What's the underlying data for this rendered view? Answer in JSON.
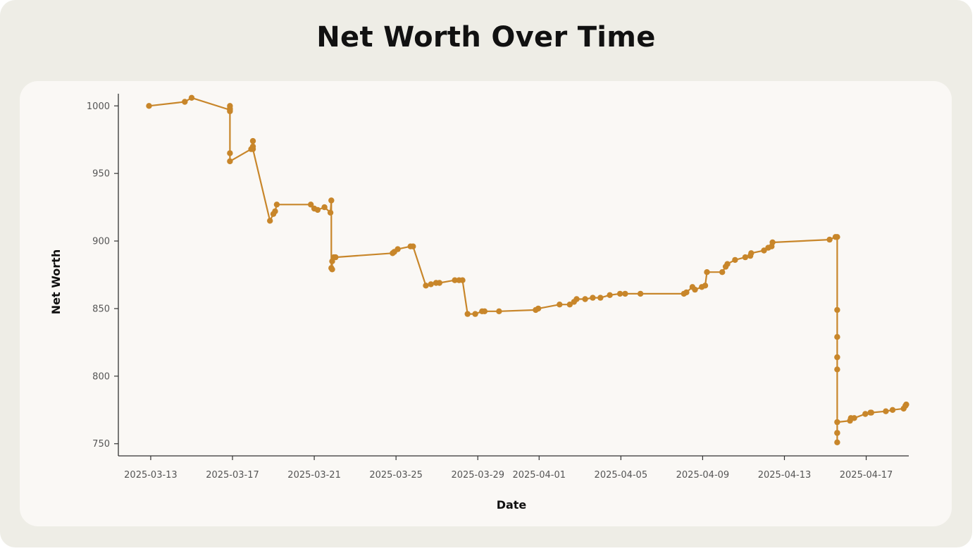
{
  "chart_data": {
    "type": "line",
    "title": "Net Worth Over Time",
    "xlabel": "Date",
    "ylabel": "Net Worth",
    "xlim": [
      "2025-03-11 10:00",
      "2025-04-19 02:00"
    ],
    "ylim": [
      741,
      1009
    ],
    "xticks": [
      "2025-03-13",
      "2025-03-17",
      "2025-03-21",
      "2025-03-25",
      "2025-03-29",
      "2025-04-01",
      "2025-04-05",
      "2025-04-09",
      "2025-04-13",
      "2025-04-17"
    ],
    "yticks": [
      750,
      800,
      850,
      900,
      950,
      1000
    ],
    "grid": false,
    "line_color": "#c8862a",
    "series": [
      {
        "x": [
          "2025-03-12 22:00",
          "2025-03-14 16:00",
          "2025-03-15 00:00",
          "2025-03-16 21:00",
          "2025-03-16 21:00",
          "2025-03-16 21:00",
          "2025-03-16 21:00",
          "2025-03-16 21:00",
          "2025-03-16 21:00",
          "2025-03-17 22:00",
          "2025-03-18 00:00",
          "2025-03-18 00:00",
          "2025-03-18 00:00",
          "2025-03-18 20:00",
          "2025-03-19 00:00",
          "2025-03-19 02:00",
          "2025-03-19 04:00",
          "2025-03-20 20:00",
          "2025-03-21 00:00",
          "2025-03-21 04:00",
          "2025-03-21 12:00",
          "2025-03-21 19:00",
          "2025-03-21 20:00",
          "2025-03-21 20:00",
          "2025-03-21 21:00",
          "2025-03-21 21:00",
          "2025-03-21 23:00",
          "2025-03-22 01:00",
          "2025-03-24 20:00",
          "2025-03-24 22:00",
          "2025-03-25 02:00",
          "2025-03-25 17:00",
          "2025-03-25 20:00",
          "2025-03-26 11:00",
          "2025-03-26 17:00",
          "2025-03-26 23:00",
          "2025-03-27 03:00",
          "2025-03-27 21:00",
          "2025-03-28 02:00",
          "2025-03-28 06:00",
          "2025-03-28 12:00",
          "2025-03-28 21:00",
          "2025-03-29 05:00",
          "2025-03-29 08:00",
          "2025-03-30 01:00",
          "2025-03-31 20:00",
          "2025-03-31 23:00",
          "2025-04-02 00:00",
          "2025-04-02 12:00",
          "2025-04-02 17:00",
          "2025-04-02 20:00",
          "2025-04-03 06:00",
          "2025-04-03 15:00",
          "2025-04-04 00:00",
          "2025-04-04 11:00",
          "2025-04-04 23:00",
          "2025-04-05 05:00",
          "2025-04-05 23:00",
          "2025-04-08 02:00",
          "2025-04-08 05:00",
          "2025-04-08 12:00",
          "2025-04-08 15:00",
          "2025-04-08 23:00",
          "2025-04-09 03:00",
          "2025-04-09 05:00",
          "2025-04-09 23:00",
          "2025-04-10 03:00",
          "2025-04-10 05:00",
          "2025-04-10 14:00",
          "2025-04-11 02:00",
          "2025-04-11 08:00",
          "2025-04-11 09:00",
          "2025-04-12 00:00",
          "2025-04-12 05:00",
          "2025-04-12 09:00",
          "2025-04-12 10:00",
          "2025-04-15 05:00",
          "2025-04-15 12:00",
          "2025-04-15 14:00",
          "2025-04-15 14:00",
          "2025-04-15 14:00",
          "2025-04-15 14:00",
          "2025-04-15 14:00",
          "2025-04-15 14:00",
          "2025-04-15 14:00",
          "2025-04-15 14:00",
          "2025-04-15 14:00",
          "2025-04-16 05:00",
          "2025-04-16 06:00",
          "2025-04-16 10:00",
          "2025-04-16 23:00",
          "2025-04-17 05:00",
          "2025-04-17 06:00",
          "2025-04-17 23:00",
          "2025-04-18 07:00",
          "2025-04-18 20:00",
          "2025-04-18 22:00",
          "2025-04-18 23:00"
        ],
        "y": [
          1000,
          1003,
          1006,
          997,
          1000,
          998,
          996,
          965,
          959,
          968,
          974,
          970,
          968,
          915,
          920,
          922,
          927,
          927,
          924,
          923,
          925,
          921,
          930,
          880,
          879,
          885,
          888,
          888,
          891,
          892,
          894,
          896,
          896,
          867,
          868,
          869,
          869,
          871,
          871,
          871,
          846,
          846,
          848,
          848,
          848,
          849,
          850,
          853,
          853,
          855,
          857,
          857,
          858,
          858,
          860,
          861,
          861,
          861,
          861,
          862,
          866,
          864,
          866,
          867,
          877,
          877,
          881,
          883,
          886,
          888,
          889,
          891,
          893,
          895,
          896,
          899,
          901,
          903,
          903,
          849,
          829,
          814,
          805,
          758,
          751,
          758,
          766,
          767,
          769,
          769,
          772,
          773,
          773,
          774,
          775,
          776,
          778,
          779
        ]
      }
    ]
  }
}
